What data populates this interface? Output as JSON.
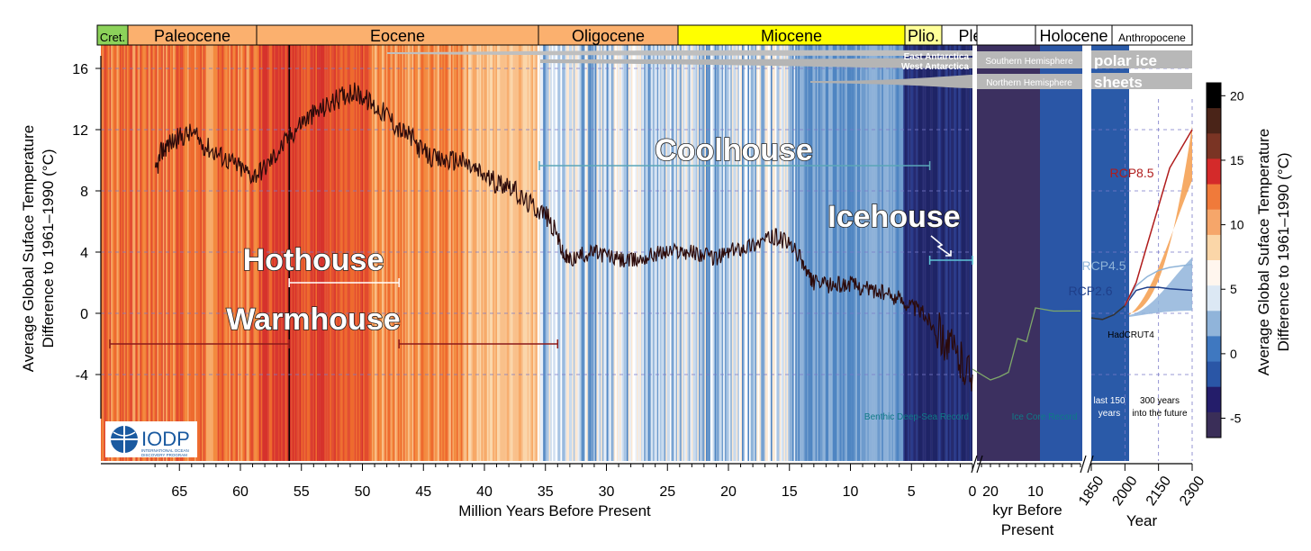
{
  "chart_data": {
    "type": "line",
    "title": "",
    "ylabel_left": [
      "Average Global Suface Temperature",
      "Difference to 1961–1990 (°C)"
    ],
    "ylabel_right": [
      "Average Global Suface Temperature",
      "Difference to 1961–1990 (°C)"
    ],
    "ylim": [
      -9,
      17
    ],
    "y_ticks": [
      "16",
      "12",
      "8",
      "4",
      "0",
      "-4"
    ],
    "panels": [
      {
        "name": "deep_time",
        "xlabel": "Million Years Before Present",
        "xlim": [
          67.5,
          0
        ],
        "x_ticks": [
          "65",
          "60",
          "55",
          "50",
          "45",
          "40",
          "35",
          "30",
          "25",
          "20",
          "15",
          "10",
          "5",
          "0"
        ]
      },
      {
        "name": "kyr",
        "xlabel": [
          "kyr Before",
          "Present"
        ],
        "xlim": [
          24,
          0
        ],
        "x_ticks": [
          "20",
          "10"
        ]
      },
      {
        "name": "years",
        "xlabel": "Year",
        "xlim": [
          1850,
          2300
        ],
        "x_ticks": [
          "1850",
          "2000",
          "2150",
          "2300"
        ]
      }
    ],
    "epochs": [
      {
        "name": "Cret.",
        "start": 67.5,
        "end": 66,
        "color": "#8cd25a"
      },
      {
        "name": "Paleocene",
        "start": 66,
        "end": 56,
        "color": "#fbb06e"
      },
      {
        "name": "Eocene",
        "start": 56,
        "end": 33.9,
        "color": "#fbb06e"
      },
      {
        "name": "Oligocene",
        "start": 33.9,
        "end": 23,
        "color": "#fbb06e"
      },
      {
        "name": "Miocene",
        "start": 23,
        "end": 5.3,
        "color": "#ffff00"
      },
      {
        "name": "Plio.",
        "start": 5.3,
        "end": 2.6,
        "color": "#ffff99"
      },
      {
        "name": "Pleistocene",
        "start": 2.6,
        "end": 0,
        "color": "#ffffff"
      },
      {
        "name": "Holocene",
        "start": 0,
        "end": 0,
        "color": "#ffffff"
      },
      {
        "name": "Anthropocene",
        "start": 0,
        "end": 0,
        "color": "#ffffff"
      }
    ],
    "climate_states": [
      {
        "name": "Hothouse",
        "start": 56,
        "end": 47
      },
      {
        "name": "Warmhouse",
        "start": 67,
        "end": 34
      },
      {
        "name": "Coolhouse",
        "start": 34,
        "end": 3.3
      },
      {
        "name": "Icehouse",
        "start": 3.3,
        "end": 0
      }
    ],
    "series": [
      {
        "name": "Benthic Deep-Sea Record",
        "color": "#2b0a0a",
        "x": [
          67,
          66.5,
          66,
          65,
          64,
          63,
          62,
          61,
          60,
          59,
          58,
          57,
          56,
          55,
          54,
          53,
          52,
          51,
          50,
          49,
          48,
          47,
          46,
          45,
          44,
          43,
          42,
          41,
          40,
          39,
          38,
          37,
          36,
          35,
          34,
          33.5,
          33,
          32,
          31,
          30,
          29,
          28,
          27,
          26,
          25,
          24,
          23,
          22,
          21,
          20,
          19,
          18,
          17,
          16,
          15,
          14,
          13.5,
          13,
          12,
          11,
          10,
          9,
          8,
          7,
          6,
          5,
          4,
          3,
          2,
          1,
          0
        ],
        "y": [
          9,
          10.5,
          11,
          11.5,
          11.8,
          11,
          10.5,
          10,
          9.5,
          9,
          9.5,
          10.5,
          11.5,
          12.5,
          13,
          13.5,
          14,
          14.5,
          14.2,
          13.5,
          13,
          12,
          11.5,
          10.5,
          10,
          10,
          10,
          9.5,
          9,
          8.5,
          8.5,
          7.5,
          7,
          6.5,
          5,
          3.7,
          3.5,
          3.8,
          4,
          3.8,
          3.5,
          3.4,
          3.6,
          3.9,
          4,
          4.1,
          4,
          3.8,
          3.6,
          4,
          4.3,
          4.5,
          4.8,
          5,
          4.5,
          3.5,
          2.5,
          2,
          1.8,
          1.9,
          1.9,
          1.7,
          1.5,
          1.2,
          1,
          0.5,
          0,
          -1,
          -2,
          -3,
          -4
        ]
      },
      {
        "name": "Ice Core Record",
        "color": "#7fa86a",
        "x": [
          24,
          20,
          18,
          16,
          14,
          12,
          10,
          6,
          0
        ],
        "y": [
          -4,
          -4,
          -4.5,
          -3.5,
          -2,
          -1.5,
          0,
          0.5,
          -0.2
        ]
      },
      {
        "name": "HadCRUT4",
        "color": "#333333",
        "x": [
          1850,
          1900,
          1950,
          2000
        ],
        "y": [
          -0.3,
          -0.4,
          -0.1,
          0.5
        ]
      },
      {
        "name": "RCP2.6",
        "color": "#1f3f8a",
        "x": [
          2000,
          2050,
          2100,
          2150,
          2200,
          2300
        ],
        "y": [
          0.5,
          1.5,
          1.7,
          1.7,
          1.6,
          1.5
        ]
      },
      {
        "name": "RCP4.5",
        "color": "#8fb4d8",
        "x": [
          2000,
          2050,
          2100,
          2150,
          2200,
          2300
        ],
        "y": [
          0.5,
          1.8,
          2.4,
          2.8,
          3,
          3.2
        ]
      },
      {
        "name": "RCP8.5",
        "color": "#b01c1c",
        "x": [
          2000,
          2050,
          2100,
          2150,
          2200,
          2300
        ],
        "y": [
          0.5,
          2,
          4.5,
          7,
          9.5,
          12
        ]
      }
    ],
    "annotations": {
      "coolhouse": "Coolhouse",
      "icehouse": "Icehouse",
      "hothouse": "Hothouse",
      "warmhouse": "Warmhouse",
      "benthic": "Benthic Deep-Sea Record",
      "icecore": "Ice Core Record",
      "hadcrut": "HadCRUT4",
      "rcp85": "RCP8.5",
      "rcp45": "RCP4.5",
      "rcp26": "RCP2.6",
      "east_ant": "East Antarctica",
      "west_ant": "West Antarctica",
      "south_hemi": "Southern Hemisphere",
      "north_hemi": "Northern Hemisphere",
      "polar_ice": "polar ice",
      "sheets": "sheets",
      "last150": [
        "last 150",
        "years"
      ],
      "future300": [
        "300 years",
        "into the future"
      ]
    },
    "colorbar": {
      "ticks": [
        "20",
        "15",
        "10",
        "5",
        "0",
        "-5"
      ],
      "colors": [
        "#000000",
        "#4a2418",
        "#7a3424",
        "#d42a2a",
        "#f07a3a",
        "#f6a66a",
        "#fbd6a8",
        "#fff6ee",
        "#dce8f4",
        "#90b4da",
        "#3f78c0",
        "#2a56a6",
        "#241d6a",
        "#3a2e58"
      ]
    }
  },
  "logo": {
    "name": "IODP",
    "subtitle": [
      "INTERNATIONAL OCEAN",
      "DISCOVERY PROGRAM"
    ]
  }
}
